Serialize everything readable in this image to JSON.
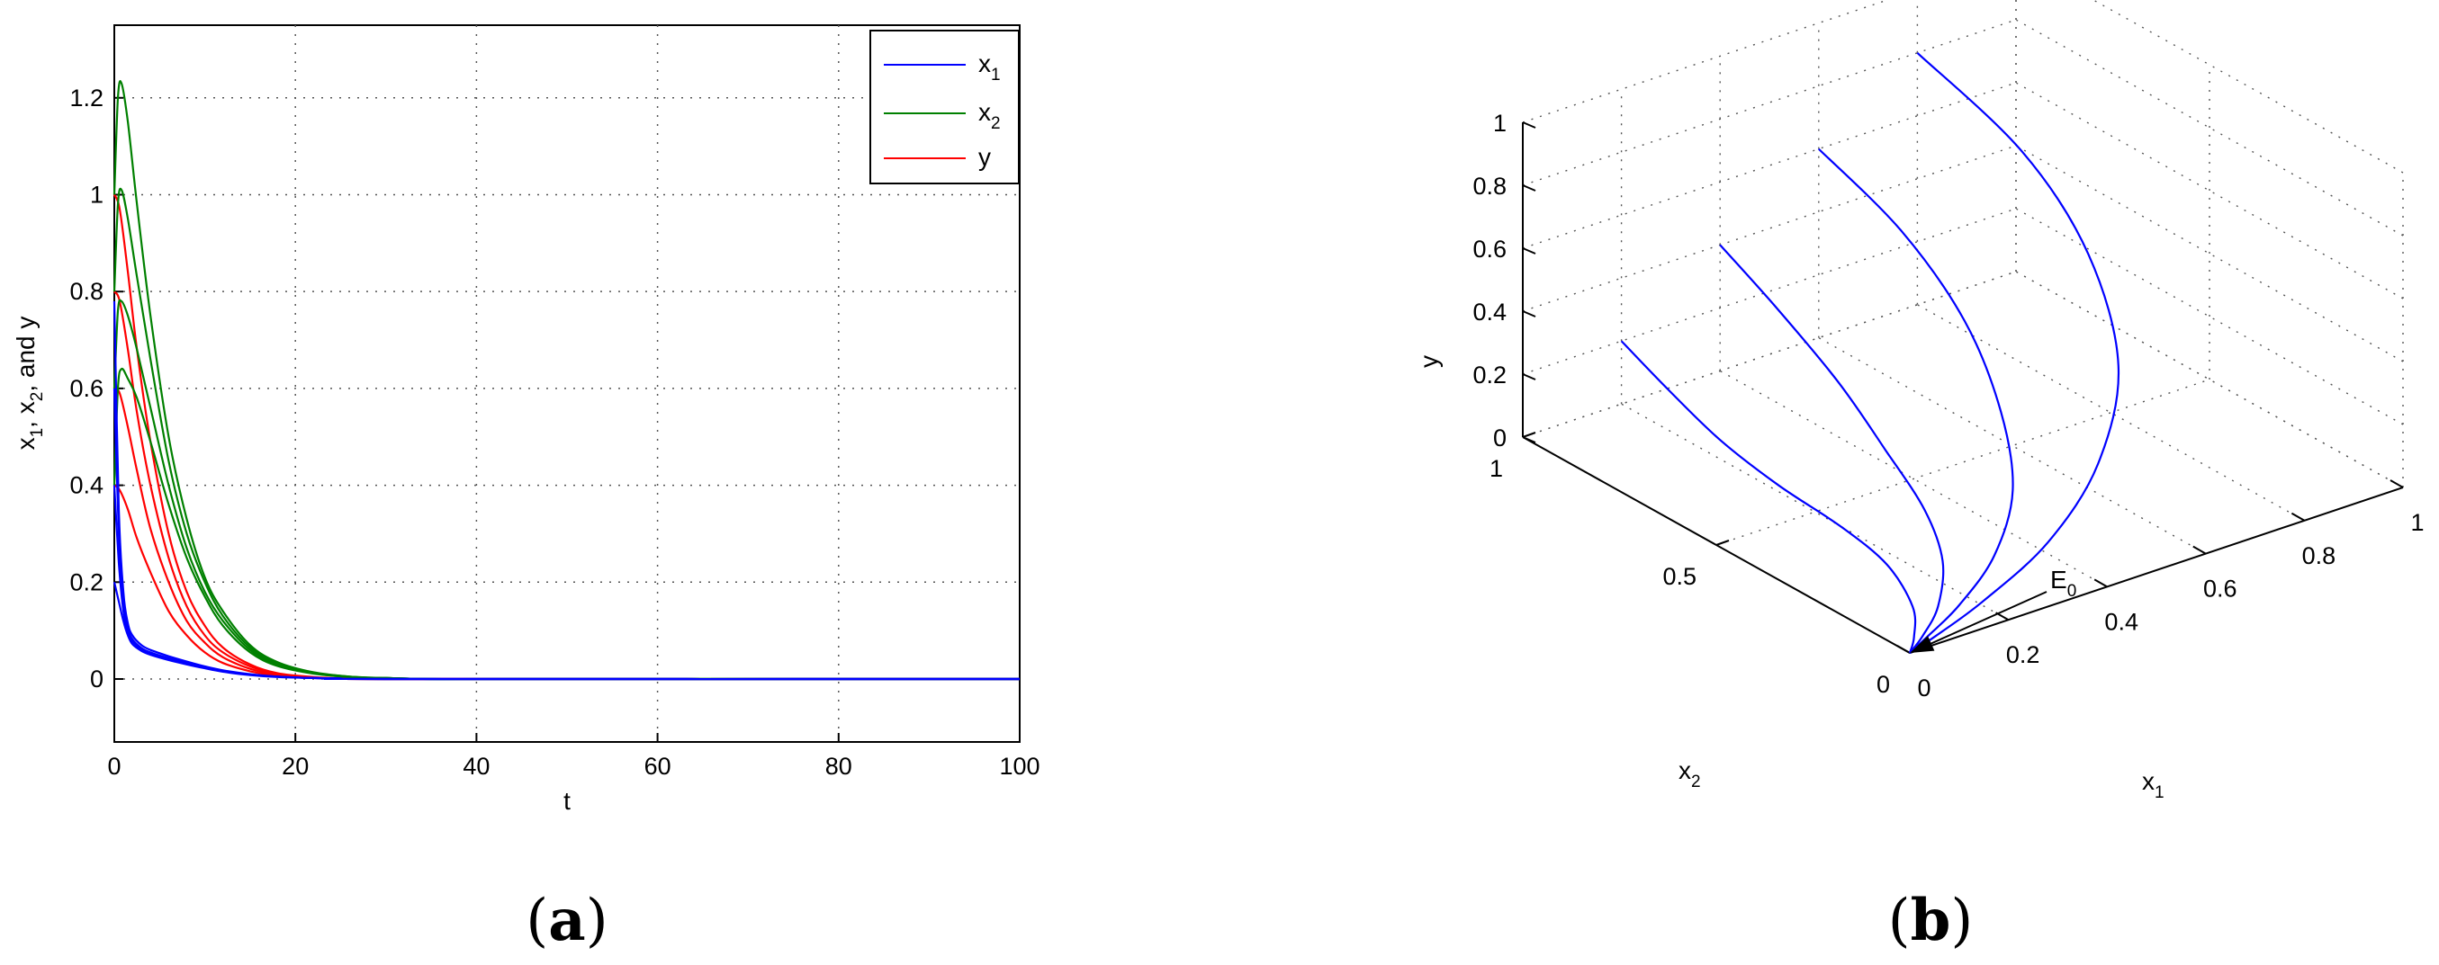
{
  "chart_data": [
    {
      "panel_label": "a",
      "type": "line",
      "xlabel": "t",
      "ylabel": "x1, x2, and y",
      "ylabel_parts": [
        "x",
        "1",
        ", x",
        "2",
        ", and y"
      ],
      "xlim": [
        0,
        100
      ],
      "ylim": [
        -0.13,
        1.35
      ],
      "x_ticks": [
        "0",
        "20",
        "40",
        "60",
        "80",
        "100"
      ],
      "y_ticks": [
        "0",
        "0.2",
        "0.4",
        "0.6",
        "0.8",
        "1",
        "1.2"
      ],
      "grid": true,
      "legend_position": "top-right",
      "legend": [
        {
          "base": "x",
          "sub": "1"
        },
        {
          "base": "x",
          "sub": "2"
        },
        {
          "base": "y",
          "sub": ""
        }
      ],
      "colors": {
        "x1": "#0000ff",
        "x2": "#008000",
        "y": "#ff0000"
      },
      "series": [
        {
          "name": "x1",
          "curves": [
            {
              "x": [
                0,
                0.5,
                1,
                1.5,
                2,
                3,
                4,
                6,
                8,
                10,
                12,
                15,
                18,
                22,
                25,
                30,
                100
              ],
              "y": [
                0.78,
                0.35,
                0.18,
                0.115,
                0.09,
                0.07,
                0.06,
                0.047,
                0.036,
                0.026,
                0.018,
                0.01,
                0.005,
                0.002,
                0.001,
                0.0,
                0.0
              ]
            },
            {
              "x": [
                0,
                0.5,
                1,
                1.5,
                2,
                3,
                4,
                6,
                8,
                10,
                12,
                15,
                18,
                22,
                25,
                30,
                100
              ],
              "y": [
                0.6,
                0.3,
                0.16,
                0.105,
                0.082,
                0.064,
                0.055,
                0.043,
                0.033,
                0.024,
                0.017,
                0.009,
                0.005,
                0.002,
                0.001,
                0.0,
                0.0
              ]
            },
            {
              "x": [
                0,
                0.5,
                1,
                1.5,
                2,
                3,
                4,
                6,
                8,
                10,
                12,
                15,
                18,
                22,
                25,
                30,
                100
              ],
              "y": [
                0.4,
                0.24,
                0.14,
                0.098,
                0.078,
                0.061,
                0.052,
                0.041,
                0.031,
                0.023,
                0.016,
                0.009,
                0.005,
                0.002,
                0.001,
                0.0,
                0.0
              ]
            },
            {
              "x": [
                0,
                0.5,
                1,
                1.5,
                2,
                3,
                4,
                6,
                8,
                10,
                12,
                15,
                18,
                22,
                25,
                30,
                100
              ],
              "y": [
                0.2,
                0.16,
                0.12,
                0.09,
                0.072,
                0.058,
                0.05,
                0.039,
                0.03,
                0.022,
                0.015,
                0.008,
                0.004,
                0.002,
                0.001,
                0.0,
                0.0
              ]
            }
          ]
        },
        {
          "name": "x2",
          "curves": [
            {
              "x": [
                0,
                0.4,
                0.8,
                1.5,
                2.5,
                4,
                6,
                8,
                10,
                12,
                15,
                18,
                22,
                26,
                30,
                35,
                45,
                100
              ],
              "y": [
                1.0,
                1.2,
                1.23,
                1.15,
                0.98,
                0.75,
                0.5,
                0.33,
                0.21,
                0.14,
                0.07,
                0.035,
                0.014,
                0.005,
                0.002,
                0.0,
                0.0,
                0.0
              ]
            },
            {
              "x": [
                0,
                0.4,
                0.8,
                1.5,
                2.5,
                4,
                6,
                8,
                10,
                12,
                15,
                18,
                22,
                26,
                30,
                35,
                45,
                100
              ],
              "y": [
                0.8,
                0.98,
                1.01,
                0.95,
                0.83,
                0.66,
                0.45,
                0.3,
                0.2,
                0.13,
                0.065,
                0.032,
                0.013,
                0.005,
                0.002,
                0.0,
                0.0,
                0.0
              ]
            },
            {
              "x": [
                0,
                0.4,
                0.8,
                1.5,
                2.5,
                4,
                6,
                8,
                10,
                12,
                15,
                18,
                22,
                26,
                30,
                35,
                45,
                100
              ],
              "y": [
                0.6,
                0.76,
                0.78,
                0.75,
                0.68,
                0.56,
                0.4,
                0.27,
                0.18,
                0.12,
                0.06,
                0.03,
                0.012,
                0.004,
                0.002,
                0.0,
                0.0,
                0.0
              ]
            },
            {
              "x": [
                0,
                0.4,
                0.8,
                1.5,
                2.5,
                4,
                6,
                8,
                10,
                12,
                15,
                18,
                22,
                26,
                30,
                35,
                45,
                100
              ],
              "y": [
                0.4,
                0.6,
                0.64,
                0.62,
                0.58,
                0.49,
                0.36,
                0.25,
                0.17,
                0.11,
                0.055,
                0.027,
                0.011,
                0.004,
                0.002,
                0.0,
                0.0,
                0.0
              ]
            }
          ]
        },
        {
          "name": "y",
          "curves": [
            {
              "x": [
                0,
                0.6,
                1.5,
                2.5,
                4,
                6,
                8,
                10,
                12,
                15,
                18,
                22,
                26,
                30,
                100
              ],
              "y": [
                1.0,
                0.97,
                0.84,
                0.68,
                0.49,
                0.3,
                0.18,
                0.11,
                0.065,
                0.03,
                0.012,
                0.004,
                0.001,
                0.0,
                0.0
              ]
            },
            {
              "x": [
                0,
                0.6,
                1.5,
                2.5,
                4,
                6,
                8,
                10,
                12,
                15,
                18,
                22,
                26,
                30,
                100
              ],
              "y": [
                0.8,
                0.78,
                0.68,
                0.55,
                0.4,
                0.25,
                0.15,
                0.09,
                0.055,
                0.026,
                0.011,
                0.003,
                0.001,
                0.0,
                0.0
              ]
            },
            {
              "x": [
                0,
                0.6,
                1.5,
                2.5,
                4,
                6,
                8,
                10,
                12,
                15,
                18,
                22,
                26,
                30,
                100
              ],
              "y": [
                0.6,
                0.59,
                0.52,
                0.43,
                0.31,
                0.2,
                0.12,
                0.075,
                0.045,
                0.021,
                0.009,
                0.003,
                0.001,
                0.0,
                0.0
              ]
            },
            {
              "x": [
                0,
                0.6,
                1.5,
                2.5,
                4,
                6,
                8,
                10,
                12,
                15,
                18,
                22,
                26,
                30,
                100
              ],
              "y": [
                0.4,
                0.39,
                0.35,
                0.29,
                0.22,
                0.14,
                0.09,
                0.055,
                0.033,
                0.016,
                0.007,
                0.002,
                0.001,
                0.0,
                0.0
              ]
            }
          ]
        }
      ]
    },
    {
      "panel_label": "b",
      "type": "line",
      "projection": "3d",
      "xlabel": "x1",
      "ylabel": "x2",
      "zlabel": "y",
      "x_axis_label": {
        "base": "x",
        "sub": "1"
      },
      "y_axis_label": {
        "base": "x",
        "sub": "2"
      },
      "z_axis_label": "y",
      "xlim": [
        0,
        1
      ],
      "ylim": [
        0,
        1
      ],
      "zlim": [
        0,
        1
      ],
      "x_ticks": [
        "0",
        "0.2",
        "0.4",
        "0.6",
        "0.8",
        "1"
      ],
      "y_ticks": [
        "0",
        "0.5",
        "1"
      ],
      "z_ticks": [
        "0",
        "0.2",
        "0.4",
        "0.6",
        "0.8",
        "1"
      ],
      "grid": true,
      "line_color": "#0000ff",
      "annotation": {
        "base": "E",
        "sub": "0",
        "points_to": [
          0,
          0,
          0
        ]
      },
      "trajectories": [
        {
          "points": [
            [
              0.2,
              1.0,
              0.2
            ],
            [
              0.17,
              0.84,
              0.17
            ],
            [
              0.15,
              0.68,
              0.13
            ],
            [
              0.15,
              0.53,
              0.09
            ],
            [
              0.16,
              0.38,
              0.055
            ],
            [
              0.15,
              0.25,
              0.03
            ],
            [
              0.1,
              0.12,
              0.012
            ],
            [
              0.04,
              0.04,
              0.003
            ],
            [
              0.0,
              0.0,
              0.0
            ]
          ]
        },
        {
          "points": [
            [
              0.4,
              1.0,
              0.4
            ],
            [
              0.35,
              0.79,
              0.37
            ],
            [
              0.31,
              0.58,
              0.3
            ],
            [
              0.28,
              0.42,
              0.21
            ],
            [
              0.25,
              0.28,
              0.13
            ],
            [
              0.2,
              0.17,
              0.07
            ],
            [
              0.12,
              0.08,
              0.03
            ],
            [
              0.05,
              0.03,
              0.008
            ],
            [
              0.0,
              0.0,
              0.0
            ]
          ]
        },
        {
          "points": [
            [
              0.6,
              1.0,
              0.6
            ],
            [
              0.54,
              0.71,
              0.57
            ],
            [
              0.48,
              0.47,
              0.48
            ],
            [
              0.42,
              0.3,
              0.34
            ],
            [
              0.35,
              0.18,
              0.21
            ],
            [
              0.25,
              0.1,
              0.11
            ],
            [
              0.14,
              0.05,
              0.045
            ],
            [
              0.05,
              0.02,
              0.01
            ],
            [
              0.0,
              0.0,
              0.0
            ]
          ]
        },
        {
          "points": [
            [
              0.8,
              1.0,
              0.8
            ],
            [
              0.73,
              0.64,
              0.77
            ],
            [
              0.66,
              0.38,
              0.66
            ],
            [
              0.58,
              0.2,
              0.47
            ],
            [
              0.46,
              0.1,
              0.29
            ],
            [
              0.32,
              0.05,
              0.15
            ],
            [
              0.17,
              0.025,
              0.06
            ],
            [
              0.06,
              0.01,
              0.015
            ],
            [
              0.0,
              0.0,
              0.0
            ]
          ]
        }
      ]
    }
  ]
}
